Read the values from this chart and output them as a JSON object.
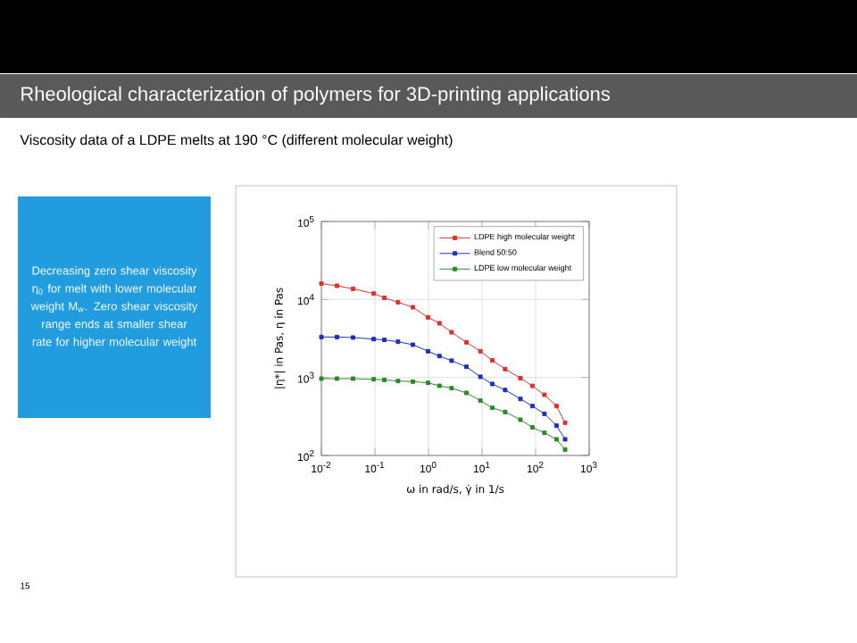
{
  "chart_data": {
    "type": "line",
    "title": "Rheological characterization of polymers for 3D-printing applications",
    "subtitle": "Viscosity data of a LDPE melts at 190 °C (different molecular weight)",
    "xlabel": "ω in rad/s, γ̇ in 1/s",
    "ylabel": "|η*| in Pas, η in Pas",
    "annotations": [
      "Decreasing zero shear viscosity η$_{0}$ for melt with lower molecular weight M$_{w}$. Zero shear viscosity range ends at smaller shear rate for higher molecular weight",
      "15"
    ],
    "x": [
      0.01,
      0.0195,
      0.039,
      0.095,
      0.15,
      0.27,
      0.51,
      0.98,
      1.6,
      2.7,
      5.1,
      9.3,
      15.5,
      27,
      52,
      87,
      146,
      245,
      355
    ],
    "series": [
      {
        "name": "LDPE high molecular weight",
        "color": "#e0302a",
        "values": [
          16000,
          15000,
          13700,
          11900,
          10500,
          9200,
          7950,
          5900,
          4950,
          3800,
          2820,
          2170,
          1660,
          1280,
          980,
          780,
          600,
          430,
          263
        ]
      },
      {
        "name": "Blend 50:50",
        "color": "#1e2fbf",
        "values": [
          3300,
          3300,
          3250,
          3100,
          3030,
          2870,
          2630,
          2170,
          1880,
          1640,
          1370,
          1020,
          825,
          690,
          530,
          430,
          342,
          241,
          161
        ]
      },
      {
        "name": "LDPE low molecular weight",
        "color": "#2a8a2a",
        "values": [
          966,
          966,
          966,
          948,
          931,
          900,
          885,
          853,
          782,
          729,
          634,
          504,
          408,
          361,
          287,
          229,
          195,
          161,
          119
        ]
      }
    ],
    "log": "xy",
    "xlim": [
      0.01,
      1000
    ],
    "ylim": [
      100,
      100000
    ],
    "xticks": [
      {
        "value": 0.01,
        "label": "10$^{-2}$"
      },
      {
        "value": 0.1,
        "label": "10$^{-1}$"
      },
      {
        "value": 1,
        "label": "10$^{0}$"
      },
      {
        "value": 10,
        "label": "10$^{1}$"
      },
      {
        "value": 100,
        "label": "10$^{2}$"
      },
      {
        "value": 1000,
        "label": "10$^{3}$"
      }
    ],
    "yticks": [
      {
        "value": 100,
        "label": "10$^{2}$"
      },
      {
        "value": 1000,
        "label": "10$^{3}$"
      },
      {
        "value": 10000,
        "label": "10$^{4}$"
      },
      {
        "value": 100000,
        "label": "10$^{5}$"
      }
    ],
    "grid": true,
    "legend": "top right",
    "marker": "square",
    "line_style": "solid"
  }
}
